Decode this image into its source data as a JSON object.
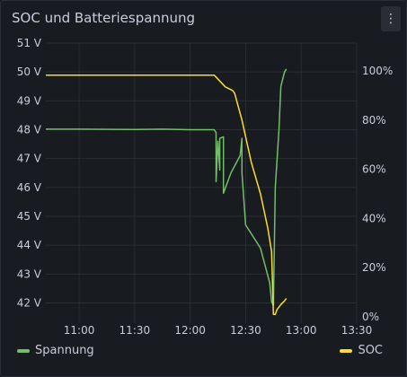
{
  "panel": {
    "title": "SOC und Batteriespannung",
    "menu_icon": "⋮"
  },
  "chart_data": {
    "type": "line",
    "title": "SOC und Batteriespannung",
    "x_ticks": [
      "11:00",
      "11:30",
      "12:00",
      "12:30",
      "13:00",
      "13:30"
    ],
    "x_range": [
      "10:42",
      "13:30"
    ],
    "y_left": {
      "ticks": [
        "42 V",
        "43 V",
        "44 V",
        "45 V",
        "46 V",
        "47 V",
        "48 V",
        "49 V",
        "50 V",
        "51 V"
      ],
      "range": [
        41.3,
        51.0
      ]
    },
    "y_right": {
      "ticks": [
        "0%",
        "20%",
        "40%",
        "60%",
        "80%",
        "100%"
      ],
      "range": [
        0,
        100
      ]
    },
    "grid": true,
    "legend_position": "bottom",
    "series": [
      {
        "name": "Spannung",
        "axis": "left",
        "color": "#73bf69",
        "points": [
          [
            "10:42",
            48.02
          ],
          [
            "11:00",
            48.02
          ],
          [
            "11:30",
            48.01
          ],
          [
            "11:45",
            48.02
          ],
          [
            "12:00",
            48.0
          ],
          [
            "12:13",
            48.0
          ],
          [
            "12:14",
            47.9
          ],
          [
            "12:14",
            46.2
          ],
          [
            "12:15",
            47.6
          ],
          [
            "12:16",
            46.6
          ],
          [
            "12:16",
            47.7
          ],
          [
            "12:18",
            47.75
          ],
          [
            "12:18",
            45.8
          ],
          [
            "12:22",
            46.5
          ],
          [
            "12:27",
            47.1
          ],
          [
            "12:28",
            47.7
          ],
          [
            "12:28",
            46.5
          ],
          [
            "12:30",
            44.7
          ],
          [
            "12:34",
            44.3
          ],
          [
            "12:38",
            43.9
          ],
          [
            "12:43",
            42.7
          ],
          [
            "12:44",
            42.05
          ],
          [
            "12:45",
            41.9
          ],
          [
            "12:46",
            46.0
          ],
          [
            "12:48",
            48.0
          ],
          [
            "12:49",
            49.5
          ],
          [
            "12:51",
            50.0
          ],
          [
            "12:52",
            50.1
          ]
        ]
      },
      {
        "name": "SOC",
        "axis": "right",
        "color": "#fade2a",
        "points": [
          [
            "10:42",
            98.3
          ],
          [
            "12:00",
            98.3
          ],
          [
            "12:13",
            98.3
          ],
          [
            "12:19",
            93.5
          ],
          [
            "12:23",
            92.0
          ],
          [
            "12:24",
            91.0
          ],
          [
            "12:28",
            80.0
          ],
          [
            "12:33",
            63.0
          ],
          [
            "12:38",
            50.0
          ],
          [
            "12:42",
            36.0
          ],
          [
            "12:44",
            26.5
          ],
          [
            "12:45",
            1.0
          ],
          [
            "12:46",
            1.0
          ],
          [
            "12:47",
            3.0
          ],
          [
            "12:49",
            5.0
          ],
          [
            "12:51",
            6.5
          ],
          [
            "12:52",
            7.5
          ]
        ]
      }
    ]
  }
}
